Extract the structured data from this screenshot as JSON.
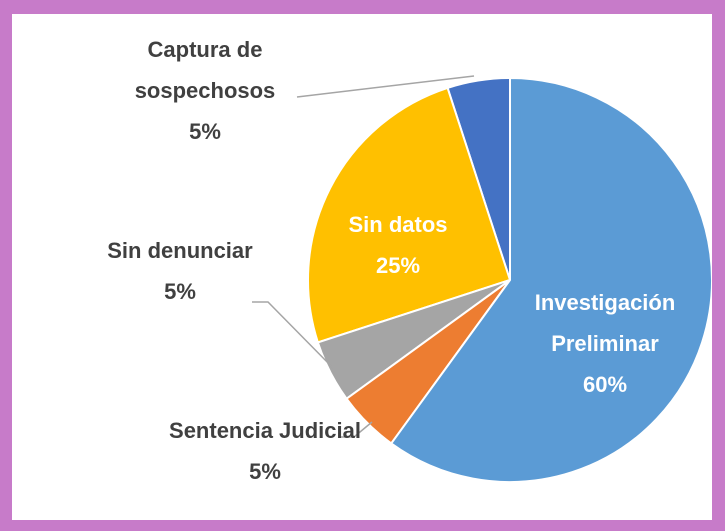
{
  "chart_data": {
    "type": "pie",
    "categories": [
      "Investigación Preliminar",
      "Sentencia Judicial",
      "Sin denunciar",
      "Sin datos",
      "Captura de sospechosos"
    ],
    "values": [
      60,
      5,
      5,
      25,
      5
    ],
    "value_labels": [
      "60%",
      "5%",
      "5%",
      "25%",
      "5%"
    ],
    "colors": [
      "#5b9bd5",
      "#ed7d31",
      "#a5a5a5",
      "#ffc000",
      "#4472c4"
    ]
  }
}
